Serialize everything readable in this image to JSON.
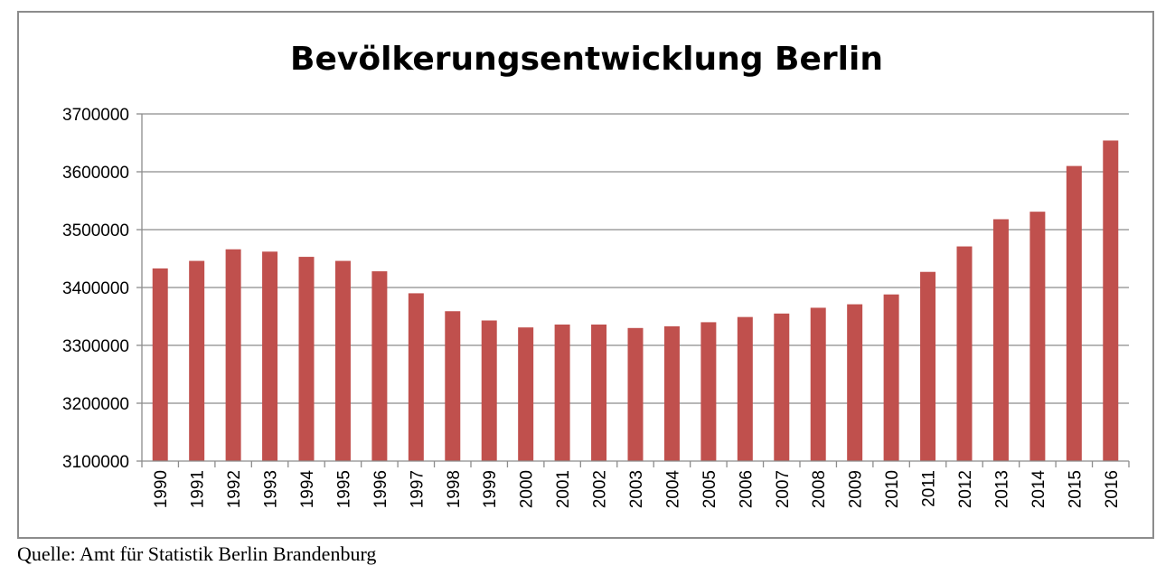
{
  "chart_data": {
    "type": "bar",
    "title": "Bevölkerungsentwicklung Berlin",
    "xlabel": "",
    "ylabel": "",
    "ylim": [
      3100000,
      3700000
    ],
    "yticks": [
      "3100000",
      "3200000",
      "3300000",
      "3400000",
      "3500000",
      "3600000",
      "3700000"
    ],
    "grid": true,
    "legend": "none",
    "bar_color": "#c0504d",
    "categories": [
      "1990",
      "1991",
      "1992",
      "1993",
      "1994",
      "1995",
      "1996",
      "1997",
      "1998",
      "1999",
      "2000",
      "2001",
      "2002",
      "2003",
      "2004",
      "2005",
      "2006",
      "2007",
      "2008",
      "2009",
      "2010",
      "2011",
      "2012",
      "2013",
      "2014",
      "2015",
      "2016"
    ],
    "values": [
      3433000,
      3446000,
      3466000,
      3462000,
      3453000,
      3446000,
      3428000,
      3390000,
      3359000,
      3343000,
      3331000,
      3336000,
      3336000,
      3330000,
      3333000,
      3340000,
      3349000,
      3355000,
      3365000,
      3371000,
      3388000,
      3427000,
      3471000,
      3518000,
      3531000,
      3610000,
      3654000
    ]
  },
  "source": "Quelle: Amt für Statistik Berlin Brandenburg"
}
